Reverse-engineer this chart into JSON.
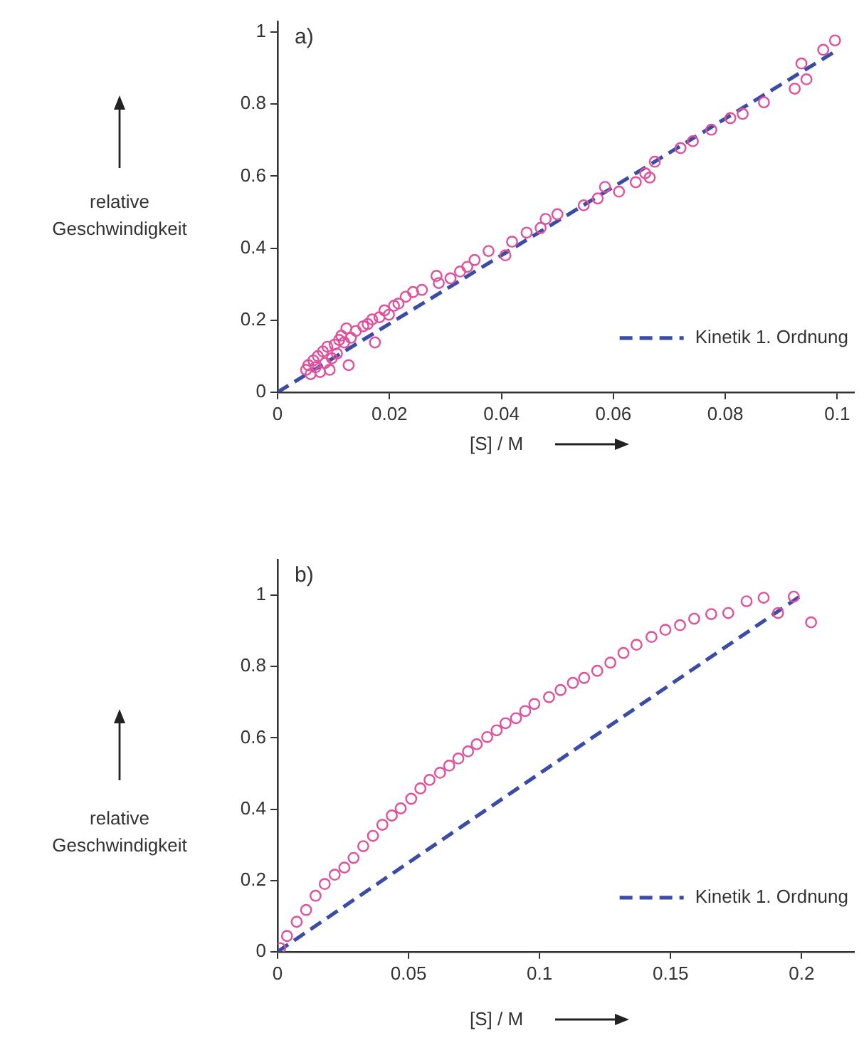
{
  "chart_data": [
    {
      "type": "scatter",
      "xlabel": "[S] / M",
      "ylabel": "relative Geschwindigkeit",
      "annotations": [
        "a)"
      ],
      "legend": "bottom right",
      "grid": false,
      "xlim": [
        0,
        0.103
      ],
      "xticks": [
        0,
        0.02,
        0.04,
        0.06,
        0.08,
        0.1
      ],
      "ylim": [
        0,
        1.03
      ],
      "yticks": [
        0,
        0.2,
        0.4,
        0.6,
        0.8,
        1
      ],
      "series": [
        {
          "marker": "circle",
          "color": "#e0509c",
          "x": [
            0.0051,
            0.0055,
            0.0059,
            0.0064,
            0.0068,
            0.0072,
            0.0076,
            0.0081,
            0.0085,
            0.0089,
            0.0093,
            0.0097,
            0.0102,
            0.0106,
            0.011,
            0.0114,
            0.0119,
            0.0127,
            0.0123,
            0.0131,
            0.014,
            0.0153,
            0.0161,
            0.0174,
            0.0169,
            0.0182,
            0.0191,
            0.0199,
            0.0208,
            0.0216,
            0.0229,
            0.0242,
            0.0258,
            0.0284,
            0.0288,
            0.0309,
            0.0326,
            0.0339,
            0.0352,
            0.0377,
            0.0407,
            0.0419,
            0.0445,
            0.047,
            0.0479,
            0.05,
            0.0547,
            0.0572,
            0.0585,
            0.061,
            0.064,
            0.0657,
            0.0665,
            0.0674,
            0.072,
            0.0742,
            0.0775,
            0.0809,
            0.0831,
            0.0869,
            0.0924,
            0.0945,
            0.0936,
            0.0975,
            0.0996
          ],
          "values": [
            0.062,
            0.075,
            0.05,
            0.088,
            0.069,
            0.1,
            0.056,
            0.113,
            0.081,
            0.126,
            0.062,
            0.094,
            0.132,
            0.107,
            0.145,
            0.157,
            0.138,
            0.075,
            0.177,
            0.151,
            0.17,
            0.183,
            0.189,
            0.138,
            0.202,
            0.208,
            0.227,
            0.215,
            0.24,
            0.246,
            0.265,
            0.278,
            0.284,
            0.323,
            0.303,
            0.316,
            0.335,
            0.348,
            0.367,
            0.392,
            0.38,
            0.418,
            0.443,
            0.456,
            0.481,
            0.494,
            0.519,
            0.538,
            0.57,
            0.557,
            0.583,
            0.608,
            0.596,
            0.64,
            0.678,
            0.697,
            0.729,
            0.761,
            0.773,
            0.805,
            0.843,
            0.869,
            0.913,
            0.951,
            0.977
          ]
        },
        {
          "type": "line",
          "name": "Kinetik 1. Ordnung",
          "line_style": "dashed",
          "marker": "none",
          "color": "#3a4ca6",
          "x": [
            0,
            0.1
          ],
          "values": [
            0,
            0.95
          ]
        }
      ]
    },
    {
      "type": "scatter",
      "xlabel": "[S] / M",
      "ylabel": "relative Geschwindigkeit",
      "annotations": [
        "b)"
      ],
      "legend": "bottom right",
      "grid": false,
      "xlim": [
        0,
        0.22
      ],
      "xticks": [
        0,
        0.05,
        0.1,
        0.15,
        0.2
      ],
      "ylim": [
        0,
        1.1
      ],
      "yticks": [
        0,
        0.2,
        0.4,
        0.6,
        0.8,
        1
      ],
      "series": [
        {
          "marker": "circle",
          "color": "#e0509c",
          "x": [
            0.001,
            0.0036,
            0.0073,
            0.0109,
            0.0145,
            0.018,
            0.0218,
            0.0255,
            0.029,
            0.0327,
            0.0364,
            0.04,
            0.0436,
            0.047,
            0.051,
            0.0545,
            0.058,
            0.062,
            0.0655,
            0.069,
            0.0727,
            0.076,
            0.08,
            0.0836,
            0.087,
            0.091,
            0.0945,
            0.098,
            0.1036,
            0.108,
            0.1127,
            0.117,
            0.122,
            0.127,
            0.132,
            0.137,
            0.1427,
            0.148,
            0.1536,
            0.159,
            0.1655,
            0.172,
            0.179,
            0.1855,
            0.191,
            0.197,
            0.2036
          ],
          "values": [
            0.01,
            0.044,
            0.084,
            0.117,
            0.157,
            0.19,
            0.216,
            0.236,
            0.263,
            0.296,
            0.325,
            0.356,
            0.382,
            0.402,
            0.429,
            0.458,
            0.482,
            0.502,
            0.522,
            0.542,
            0.562,
            0.582,
            0.602,
            0.621,
            0.641,
            0.655,
            0.675,
            0.695,
            0.714,
            0.734,
            0.754,
            0.768,
            0.788,
            0.811,
            0.838,
            0.861,
            0.883,
            0.903,
            0.916,
            0.934,
            0.947,
            0.95,
            0.983,
            0.993,
            0.95,
            0.996,
            0.924
          ]
        },
        {
          "type": "line",
          "name": "Kinetik 1. Ordnung",
          "line_style": "dashed",
          "marker": "none",
          "color": "#3a4ca6",
          "x": [
            0,
            0.2
          ],
          "values": [
            0,
            1
          ]
        }
      ]
    }
  ]
}
